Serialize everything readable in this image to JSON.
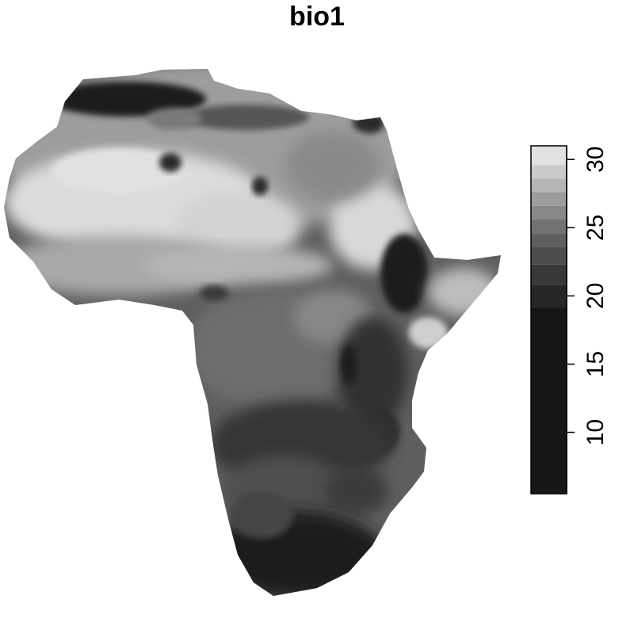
{
  "title": "bio1",
  "legend": {
    "ticks": [
      "10",
      "15",
      "20",
      "25",
      "30"
    ],
    "tick_values": [
      10,
      15,
      20,
      25,
      30
    ],
    "range": [
      5.5,
      31
    ],
    "classes": [
      {
        "from": 5.5,
        "to": 19.2,
        "color": "#161616"
      },
      {
        "from": 19.2,
        "to": 20.8,
        "color": "#262626"
      },
      {
        "from": 20.8,
        "to": 22.3,
        "color": "#383838"
      },
      {
        "from": 22.3,
        "to": 23.6,
        "color": "#4d4d4d"
      },
      {
        "from": 23.6,
        "to": 24.6,
        "color": "#5f5f5f"
      },
      {
        "from": 24.6,
        "to": 25.6,
        "color": "#727272"
      },
      {
        "from": 25.6,
        "to": 26.6,
        "color": "#888888"
      },
      {
        "from": 26.6,
        "to": 27.6,
        "color": "#9d9d9d"
      },
      {
        "from": 27.6,
        "to": 28.6,
        "color": "#b5b5b5"
      },
      {
        "from": 28.6,
        "to": 29.6,
        "color": "#cbcbcb"
      },
      {
        "from": 29.6,
        "to": 31,
        "color": "#e1e1e1"
      }
    ]
  }
}
